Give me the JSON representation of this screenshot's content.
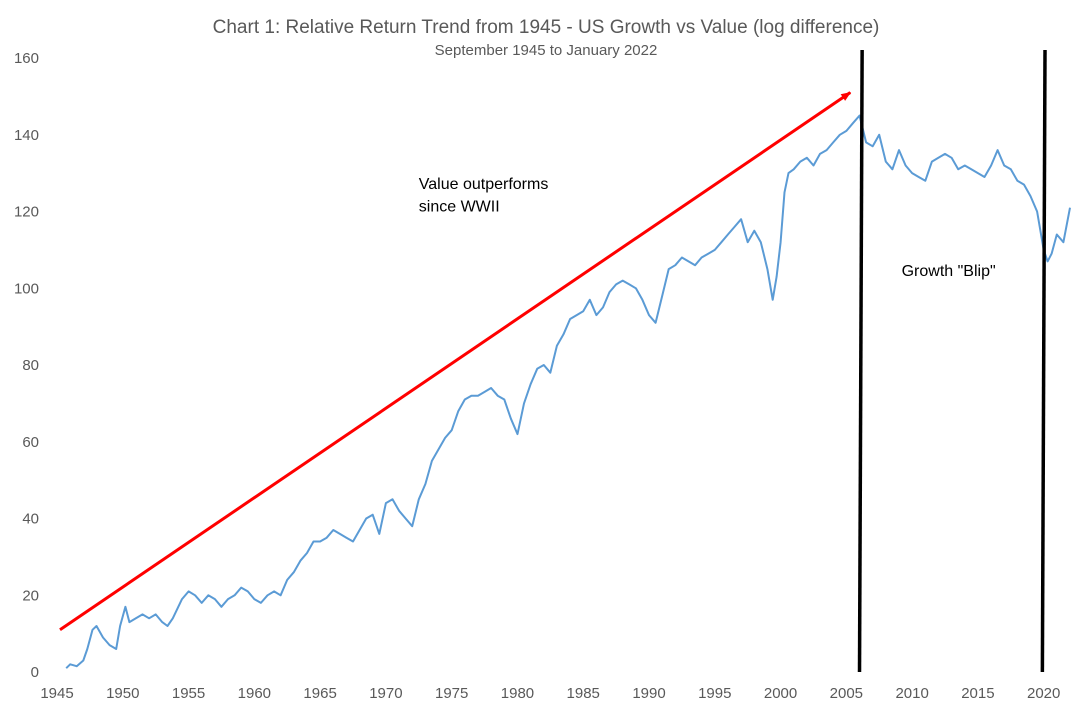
{
  "chart_data": {
    "type": "line",
    "title": "Chart 1: Relative Return Trend from 1945 - US Growth vs Value (log difference)",
    "subtitle": "September 1945 to January 2022",
    "xlabel": "",
    "ylabel": "",
    "xlim": [
      1945,
      2022
    ],
    "ylim": [
      0,
      160
    ],
    "x_ticks": [
      1945,
      1950,
      1955,
      1960,
      1965,
      1970,
      1975,
      1980,
      1985,
      1990,
      1995,
      2000,
      2005,
      2010,
      2015,
      2020
    ],
    "y_ticks": [
      0,
      20,
      40,
      60,
      80,
      100,
      120,
      140,
      160
    ],
    "grid": false,
    "legend": "none",
    "series": [
      {
        "color": "#5b9bd5",
        "x": [
          1945.7,
          1946.0,
          1946.5,
          1947.0,
          1947.3,
          1947.7,
          1948.0,
          1948.5,
          1949.0,
          1949.5,
          1949.8,
          1950.2,
          1950.5,
          1951.0,
          1951.5,
          1952.0,
          1952.5,
          1953.0,
          1953.4,
          1953.8,
          1954.5,
          1955.0,
          1955.5,
          1956.0,
          1956.5,
          1957.0,
          1957.5,
          1958.0,
          1958.5,
          1959.0,
          1959.5,
          1960.0,
          1960.5,
          1961.0,
          1961.5,
          1962.0,
          1962.5,
          1963.0,
          1963.5,
          1964.0,
          1964.5,
          1965.0,
          1965.5,
          1966.0,
          1966.5,
          1967.0,
          1967.5,
          1968.0,
          1968.5,
          1969.0,
          1969.5,
          1970.0,
          1970.5,
          1971.0,
          1971.5,
          1972.0,
          1972.5,
          1973.0,
          1973.5,
          1974.0,
          1974.5,
          1975.0,
          1975.5,
          1976.0,
          1976.5,
          1977.0,
          1977.5,
          1978.0,
          1978.5,
          1979.0,
          1979.5,
          1980.0,
          1980.5,
          1981.0,
          1981.5,
          1982.0,
          1982.5,
          1983.0,
          1983.5,
          1984.0,
          1984.5,
          1985.0,
          1985.5,
          1986.0,
          1986.5,
          1987.0,
          1987.5,
          1988.0,
          1988.5,
          1989.0,
          1989.5,
          1990.0,
          1990.5,
          1991.0,
          1991.5,
          1992.0,
          1992.5,
          1993.0,
          1993.5,
          1994.0,
          1994.5,
          1995.0,
          1995.5,
          1996.0,
          1996.5,
          1997.0,
          1997.5,
          1998.0,
          1998.5,
          1999.0,
          1999.4,
          1999.7,
          2000.0,
          2000.3,
          2000.6,
          2001.0,
          2001.5,
          2002.0,
          2002.5,
          2003.0,
          2003.5,
          2004.0,
          2004.5,
          2005.0,
          2005.5,
          2006.0,
          2006.5,
          2007.0,
          2007.5,
          2008.0,
          2008.5,
          2009.0,
          2009.5,
          2010.0,
          2010.5,
          2011.0,
          2011.5,
          2012.0,
          2012.5,
          2013.0,
          2013.5,
          2014.0,
          2014.5,
          2015.0,
          2015.5,
          2016.0,
          2016.5,
          2017.0,
          2017.5,
          2018.0,
          2018.5,
          2019.0,
          2019.5,
          2020.0,
          2020.3,
          2020.6,
          2021.0,
          2021.5,
          2022.0
        ],
        "y": [
          1,
          2,
          1.5,
          3,
          6,
          11,
          12,
          9,
          7,
          6,
          12,
          17,
          13,
          14,
          15,
          14,
          15,
          13,
          12,
          14,
          19,
          21,
          20,
          18,
          20,
          19,
          17,
          19,
          20,
          22,
          21,
          19,
          18,
          20,
          21,
          20,
          24,
          26,
          29,
          31,
          34,
          34,
          35,
          37,
          36,
          35,
          34,
          37,
          40,
          41,
          36,
          44,
          45,
          42,
          40,
          38,
          45,
          49,
          55,
          58,
          61,
          63,
          68,
          71,
          72,
          72,
          73,
          74,
          72,
          71,
          66,
          62,
          70,
          75,
          79,
          80,
          78,
          85,
          88,
          92,
          93,
          94,
          97,
          93,
          95,
          99,
          101,
          102,
          101,
          100,
          97,
          93,
          91,
          98,
          105,
          106,
          108,
          107,
          106,
          108,
          109,
          110,
          112,
          114,
          116,
          118,
          112,
          115,
          112,
          105,
          97,
          103,
          112,
          125,
          130,
          131,
          133,
          134,
          132,
          135,
          136,
          138,
          140,
          141,
          143,
          145,
          138,
          137,
          140,
          133,
          131,
          136,
          132,
          130,
          129,
          128,
          133,
          134,
          135,
          134,
          131,
          132,
          131,
          130,
          129,
          132,
          136,
          132,
          131,
          128,
          127,
          124,
          120,
          110,
          107,
          109,
          114,
          112,
          121
        ]
      }
    ],
    "annotations": [
      {
        "text": "Value outperforms",
        "x": 1972.5,
        "y": 125.8
      },
      {
        "text": "since WWII",
        "x": 1972.5,
        "y": 120.0
      },
      {
        "text": "Growth \"Blip\"",
        "x": 2009.2,
        "y": 103.2
      }
    ],
    "trend_arrow": {
      "color": "#ff0000",
      "from": [
        1945,
        11
      ],
      "to": [
        2005.3,
        151
      ]
    },
    "vertical_lines": [
      {
        "color": "#000000",
        "x_bottom": 2006.0,
        "x_top": 2006.2
      },
      {
        "color": "#000000",
        "x_bottom": 2019.9,
        "x_top": 2020.1
      }
    ]
  }
}
